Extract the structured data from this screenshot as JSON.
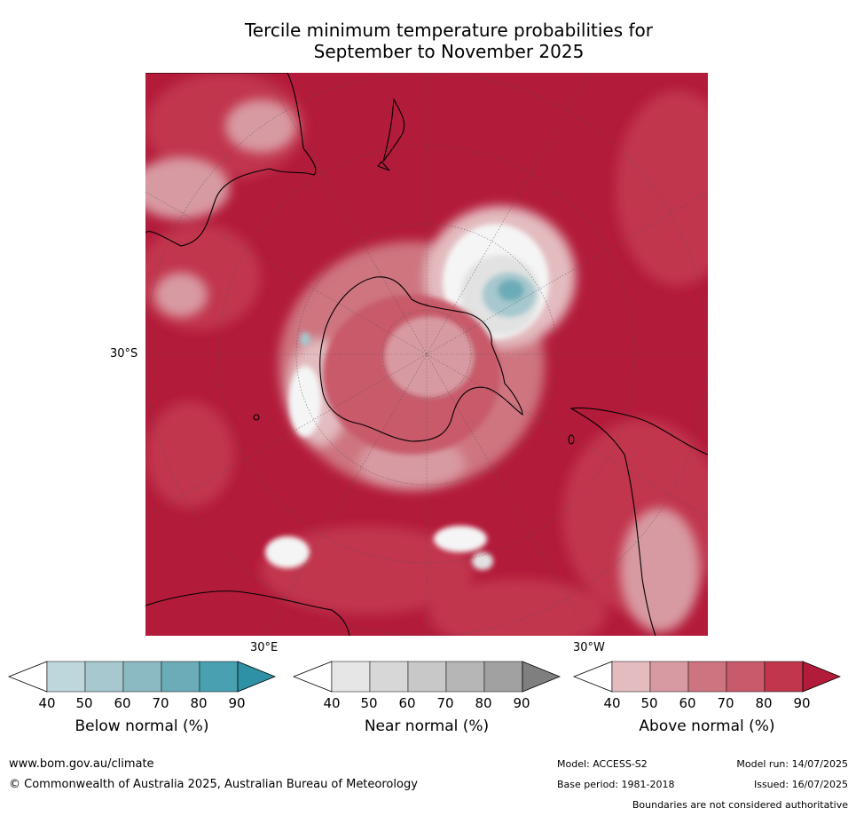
{
  "title_line1": "Tercile minimum temperature probabilities for",
  "title_line2": "September to November 2025",
  "map": {
    "lat_label": "30°S",
    "lon_label_left": "30°E",
    "lon_label_right": "30°W",
    "colors": {
      "above_90": "#b31b3a",
      "above_80": "#c1364d",
      "above_70": "#c85a6b",
      "above_60": "#ce7480",
      "above_50": "#d89aa2",
      "above_40": "#e3bcc0",
      "near_white": "#f5f5f5",
      "near_light": "#e2e2e2",
      "near_mid": "#c4c4c4",
      "below_light": "#a6c8ce",
      "below_mid": "#6cacb8"
    }
  },
  "colorbars": [
    {
      "label": "Below normal (%)",
      "ticks": [
        "40",
        "50",
        "60",
        "70",
        "80",
        "90"
      ],
      "colors": [
        "#ffffff",
        "#bdd7dd",
        "#a6c8ce",
        "#8cbac2",
        "#6cacb8",
        "#49a0b1",
        "#2e91a5"
      ]
    },
    {
      "label": "Near normal (%)",
      "ticks": [
        "40",
        "50",
        "60",
        "70",
        "80",
        "90"
      ],
      "colors": [
        "#ffffff",
        "#e6e6e6",
        "#d7d7d7",
        "#c8c8c8",
        "#b6b6b6",
        "#a1a1a1",
        "#7f7f7f"
      ]
    },
    {
      "label": "Above normal (%)",
      "ticks": [
        "40",
        "50",
        "60",
        "70",
        "80",
        "90"
      ],
      "colors": [
        "#ffffff",
        "#e3bcc0",
        "#d89aa2",
        "#ce7480",
        "#c85a6b",
        "#c1364d",
        "#b31b3a"
      ]
    }
  ],
  "footer": {
    "url": "www.bom.gov.au/climate",
    "copyright": "© Commonwealth of Australia 2025, Australian Bureau of Meteorology",
    "model": "Model: ACCESS-S2",
    "model_run": "Model run: 14/07/2025",
    "base_period": "Base period: 1981-2018",
    "issued": "Issued: 16/07/2025",
    "disclaimer": "Boundaries are not considered authoritative"
  }
}
